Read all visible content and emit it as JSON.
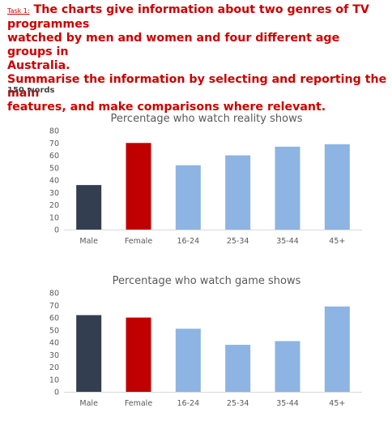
{
  "task": {
    "label": "Task 1:",
    "prompt_line1": "The charts give information about two genres of TV programmes",
    "prompt_line2": "watched by men and women and four different age groups in",
    "prompt_line3": "Australia.",
    "prompt_line4": "Summarise the information by selecting and reporting the main",
    "prompt_line5": "features, and make comparisons where relevant."
  },
  "word_count": "150 words",
  "colors": {
    "male": "#333f50",
    "female": "#c00000",
    "age": "#8db4e2",
    "text": "#cc0000"
  },
  "chart_data": [
    {
      "type": "bar",
      "title": "Percentage who watch reality shows",
      "categories": [
        "Male",
        "Female",
        "16-24",
        "25-34",
        "35-44",
        "45+"
      ],
      "values": [
        36,
        70,
        52,
        60,
        67,
        69
      ],
      "ylim": [
        0,
        80
      ],
      "yticks": [
        "0",
        "10",
        "20",
        "30",
        "40",
        "50",
        "60",
        "70",
        "80"
      ],
      "xlabel": "",
      "ylabel": "",
      "grid": false,
      "legend": "none"
    },
    {
      "type": "bar",
      "title": "Percentage who watch game shows",
      "categories": [
        "Male",
        "Female",
        "16-24",
        "25-34",
        "35-44",
        "45+"
      ],
      "values": [
        62,
        60,
        51,
        38,
        41,
        69
      ],
      "ylim": [
        0,
        80
      ],
      "yticks": [
        "0",
        "10",
        "20",
        "30",
        "40",
        "50",
        "60",
        "70",
        "80"
      ],
      "xlabel": "",
      "ylabel": "",
      "grid": false,
      "legend": "none"
    }
  ]
}
